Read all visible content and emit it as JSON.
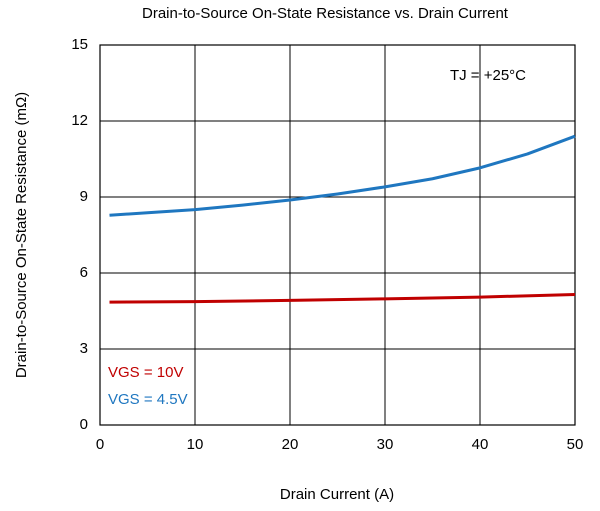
{
  "chart_data": {
    "type": "line",
    "title": "Drain-to-Source On-State Resistance vs. Drain Current",
    "x_label": "Drain Current (A)",
    "y_label": "Drain-to-Source On-State Resistance (mΩ)",
    "annotation": "TJ = +25°C",
    "xlim": [
      0,
      50
    ],
    "xticks": [
      0,
      10,
      20,
      30,
      40,
      50
    ],
    "ylim": [
      0,
      15
    ],
    "yticks": [
      0,
      3,
      6,
      9,
      12,
      15
    ],
    "grid": true,
    "series": [
      {
        "name": "VGS = 10V",
        "color": "#c00000",
        "x": [
          1,
          10,
          20,
          30,
          40,
          50
        ],
        "values": [
          4.85,
          4.87,
          4.92,
          4.98,
          5.05,
          5.15
        ]
      },
      {
        "name": "VGS = 4.5V",
        "color": "#1f77c0",
        "x": [
          1,
          5,
          10,
          15,
          20,
          25,
          30,
          35,
          40,
          45,
          50
        ],
        "values": [
          8.28,
          8.38,
          8.5,
          8.68,
          8.88,
          9.12,
          9.4,
          9.72,
          10.15,
          10.7,
          11.4
        ]
      }
    ]
  }
}
